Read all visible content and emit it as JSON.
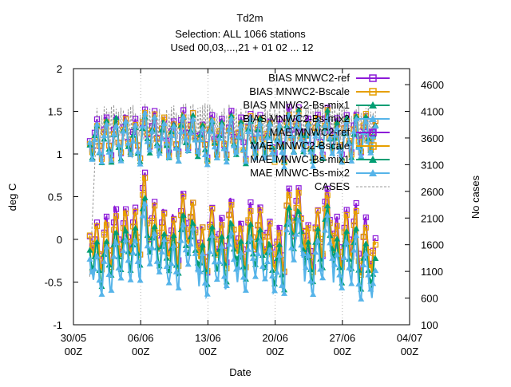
{
  "chart_data": {
    "type": "line",
    "title": [
      "Td2m",
      "Selection: ALL    1066 stations",
      "Used 00,03,...,21 + 01 02 ... 12"
    ],
    "xlabel": "Date",
    "ylabel": "deg C",
    "y2label": "No cases",
    "xlim": [
      0,
      35
    ],
    "ylim": [
      -1,
      2
    ],
    "y2lim": [
      100,
      4900
    ],
    "x_ticks": [
      {
        "x": 0,
        "line1": "30/05",
        "line2": "00Z"
      },
      {
        "x": 7,
        "line1": "06/06",
        "line2": "00Z"
      },
      {
        "x": 14,
        "line1": "13/06",
        "line2": "00Z"
      },
      {
        "x": 21,
        "line1": "20/06",
        "line2": "00Z"
      },
      {
        "x": 28,
        "line1": "27/06",
        "line2": "00Z"
      },
      {
        "x": 35,
        "line1": "04/07",
        "line2": "00Z"
      }
    ],
    "y_ticks": [
      "-1",
      "-0.5",
      "0",
      "0.5",
      "1",
      "1.5",
      "2"
    ],
    "y2_ticks": [
      "100",
      "600",
      "1100",
      "1600",
      "2100",
      "2600",
      "3100",
      "3600",
      "4100",
      "4600"
    ],
    "x_start": 1.7,
    "x_end": 31.5,
    "samples_per_day": 8,
    "legend_position": "top-right",
    "series": [
      {
        "name": "BIAS MNWC2-ref",
        "color": "#8c1ad8",
        "marker": "square-open",
        "bias": true,
        "base": 0.12,
        "amp": 0.28,
        "offset": 0.0
      },
      {
        "name": "BIAS MNWC2-Bscale",
        "color": "#e69f00",
        "marker": "square-open",
        "bias": true,
        "base": 0.1,
        "amp": 0.26,
        "offset": -0.02
      },
      {
        "name": "BIAS MNWC2-Bs-mix1",
        "color": "#009e73",
        "marker": "triangle-filled",
        "bias": true,
        "base": -0.02,
        "amp": 0.24,
        "offset": -0.08
      },
      {
        "name": "BIAS MNWC2-Bs-mix2",
        "color": "#56b4e9",
        "marker": "triangle-filled",
        "bias": true,
        "base": -0.08,
        "amp": 0.24,
        "offset": -0.13
      },
      {
        "name": "MAE MNWC2-ref",
        "color": "#8c1ad8",
        "marker": "square-open",
        "bias": false,
        "base": 1.22,
        "amp": 0.22,
        "offset": 0.02
      },
      {
        "name": "MAE MNWC2-Bscale",
        "color": "#e69f00",
        "marker": "square-open",
        "bias": false,
        "base": 1.21,
        "amp": 0.22,
        "offset": 0.0
      },
      {
        "name": "MAE MNWC-Bs-mix1",
        "color": "#009e73",
        "marker": "triangle-filled",
        "bias": false,
        "base": 1.2,
        "amp": 0.22,
        "offset": -0.01
      },
      {
        "name": "MAE MNWC-Bs-mix2",
        "color": "#56b4e9",
        "marker": "triangle-filled",
        "bias": false,
        "base": 1.19,
        "amp": 0.22,
        "offset": -0.02
      },
      {
        "name": "CASES",
        "color": "#999999",
        "marker": "none",
        "dashed": true,
        "cases": true
      }
    ],
    "cases_profile": {
      "low": 3450,
      "high": 4250,
      "ramp_start": 1.7,
      "ramp_end": 2.3,
      "ramp_from": 1000
    }
  }
}
